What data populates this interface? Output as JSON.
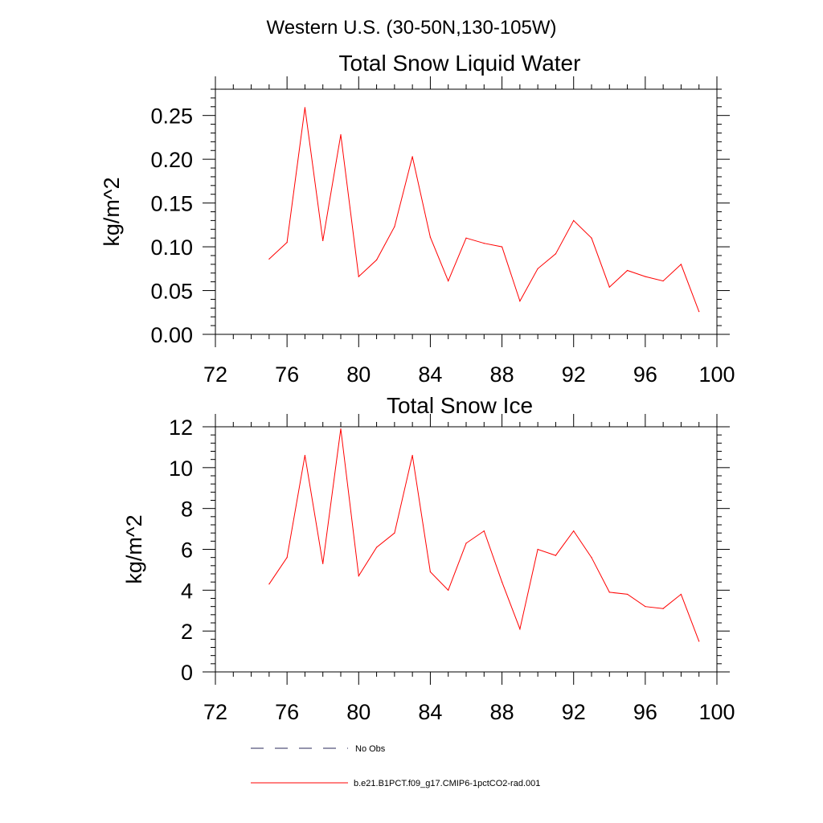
{
  "chart_data": {
    "supertitle": "Western U.S. (30-50N,130-105W)",
    "legend": [
      {
        "label": "No Obs",
        "color": "#2a2a5a",
        "dash": true
      },
      {
        "label": "b.e21.B1PCT.f09_g17.CMIP6-1pctCO2-rad.001",
        "color": "#ff0000",
        "dash": false
      }
    ],
    "panels": [
      {
        "type": "line",
        "title": "Total Snow Liquid Water",
        "ylabel": "kg/m^2",
        "xlim": [
          72,
          100
        ],
        "ylim": [
          0,
          0.28
        ],
        "xticks": [
          72,
          76,
          80,
          84,
          88,
          92,
          96,
          100
        ],
        "xtick_labels": [
          "72",
          "76",
          "80",
          "84",
          "88",
          "92",
          "96",
          "100"
        ],
        "yticks": [
          0,
          0.05,
          0.1,
          0.15,
          0.2,
          0.25
        ],
        "ytick_labels": [
          "0.00",
          "0.05",
          "0.10",
          "0.15",
          "0.20",
          "0.25"
        ],
        "series": [
          {
            "color": "#ff0000",
            "x": [
              75,
              76,
              77,
              78,
              79,
              80,
              81,
              82,
              83,
              84,
              85,
              86,
              87,
              88,
              89,
              90,
              91,
              92,
              93,
              94,
              95,
              96,
              97,
              98,
              99
            ],
            "y": [
              0.086,
              0.105,
              0.259,
              0.107,
              0.228,
              0.066,
              0.085,
              0.123,
              0.203,
              0.111,
              0.061,
              0.11,
              0.104,
              0.1,
              0.038,
              0.075,
              0.092,
              0.13,
              0.11,
              0.054,
              0.073,
              0.066,
              0.061,
              0.08,
              0.026
            ]
          }
        ]
      },
      {
        "type": "line",
        "title": "Total Snow Ice",
        "ylabel": "kg/m^2",
        "xlim": [
          72,
          100
        ],
        "ylim": [
          0,
          12
        ],
        "xticks": [
          72,
          76,
          80,
          84,
          88,
          92,
          96,
          100
        ],
        "xtick_labels": [
          "72",
          "76",
          "80",
          "84",
          "88",
          "92",
          "96",
          "100"
        ],
        "yticks": [
          0,
          2,
          4,
          6,
          8,
          10,
          12
        ],
        "ytick_labels": [
          "0",
          "2",
          "4",
          "6",
          "8",
          "10",
          "12"
        ],
        "series": [
          {
            "color": "#ff0000",
            "x": [
              75,
              76,
              77,
              78,
              79,
              80,
              81,
              82,
              83,
              84,
              85,
              86,
              87,
              88,
              89,
              90,
              91,
              92,
              93,
              94,
              95,
              96,
              97,
              98,
              99
            ],
            "y": [
              4.3,
              5.6,
              10.6,
              5.3,
              11.9,
              4.7,
              6.1,
              6.8,
              10.6,
              4.9,
              4.0,
              6.3,
              6.9,
              4.4,
              2.1,
              6.0,
              5.7,
              6.9,
              5.6,
              3.9,
              3.8,
              3.2,
              3.1,
              3.8,
              1.5
            ]
          }
        ]
      }
    ]
  }
}
